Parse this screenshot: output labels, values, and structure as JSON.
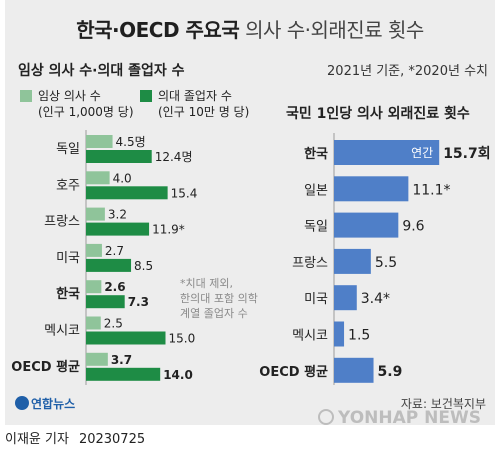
{
  "title": {
    "bold": "한국·OECD 주요국",
    "light": "의사 수·외래진료 횟수"
  },
  "note_year": "2021년 기준, *2020년 수치",
  "left_chart_title": "임상 의사 수·의대 졸업자 수",
  "right_chart_title": "국민 1인당 의사 외래진료 횟수",
  "footnote": [
    "*치대 제외,",
    "한의대 포함 의학",
    "계열 졸업자 수"
  ],
  "source": "자료: 보건복지부",
  "logo": "연합뉴스",
  "watermark": "YONHAP NEWS",
  "reporter": "이재윤 기자",
  "date": "20230725",
  "colors": {
    "light_green": "#8fc49a",
    "dark_green": "#1e8c45",
    "blue": "#4f7fc8",
    "panel": "#ededed"
  },
  "chart_data": [
    {
      "type": "bar",
      "orientation": "horizontal",
      "title": "임상 의사 수·의대 졸업자 수",
      "legend": [
        {
          "name": "임상 의사 수",
          "sub": "(인구 1,000명 당)",
          "color": "#8fc49a"
        },
        {
          "name": "의대 졸업자 수",
          "sub": "(인구 10만 명 당)",
          "color": "#1e8c45"
        }
      ],
      "categories": [
        "독일",
        "호주",
        "프랑스",
        "미국",
        "한국",
        "멕시코",
        "OECD 평균"
      ],
      "series": [
        {
          "name": "임상 의사 수",
          "values": [
            4.5,
            4.0,
            3.2,
            2.7,
            2.6,
            2.5,
            3.7
          ],
          "labels": [
            "4.5명",
            "4.0",
            "3.2",
            "2.7",
            "2.6",
            "2.5",
            "3.7"
          ]
        },
        {
          "name": "의대 졸업자 수",
          "values": [
            12.4,
            15.4,
            11.9,
            8.5,
            7.3,
            15.0,
            14.0
          ],
          "labels": [
            "12.4명",
            "15.4",
            "11.9*",
            "8.5",
            "7.3",
            "15.0",
            "14.0"
          ]
        }
      ],
      "bold_categories": [
        "한국",
        "OECD 평균"
      ]
    },
    {
      "type": "bar",
      "orientation": "horizontal",
      "title": "국민 1인당 의사 외래진료 횟수",
      "categories": [
        "한국",
        "일본",
        "독일",
        "프랑스",
        "미국",
        "멕시코",
        "OECD 평균"
      ],
      "values": [
        15.7,
        11.1,
        9.6,
        5.5,
        3.4,
        1.5,
        5.9
      ],
      "labels": [
        "15.7회",
        "11.1*",
        "9.6",
        "5.5",
        "3.4*",
        "1.5",
        "5.9"
      ],
      "inner_label": "연간",
      "bold_categories": [
        "한국",
        "OECD 평균"
      ]
    }
  ]
}
